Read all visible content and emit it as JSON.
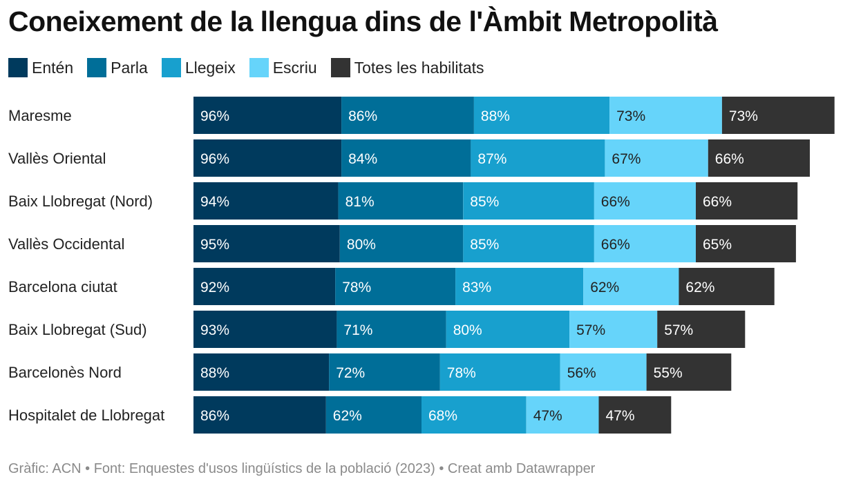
{
  "title": "Coneixement de la llengua dins de l'Àmbit Metropolità",
  "legend": [
    {
      "label": "Entén",
      "color": "#003a5d"
    },
    {
      "label": "Parla",
      "color": "#006e98"
    },
    {
      "label": "Llegeix",
      "color": "#18a0ce"
    },
    {
      "label": "Escriu",
      "color": "#66d4fa"
    },
    {
      "label": "Totes les habilitats",
      "color": "#333333"
    }
  ],
  "footer": {
    "source": "Gràfic: ACN • Font: Enquestes d'usos lingüístics de la població (2023) • Creat amb Datawrapper"
  },
  "chart_data": {
    "type": "bar",
    "orientation": "horizontal",
    "stacked": true,
    "title": "Coneixement de la llengua dins de l'Àmbit Metropolità",
    "categories": [
      "Maresme",
      "Vallès Oriental",
      "Baix Llobregat (Nord)",
      "Vallès Occidental",
      "Barcelona ciutat",
      "Baix Llobregat (Sud)",
      "Barcelonès Nord",
      "Hospitalet de Llobregat"
    ],
    "series": [
      {
        "name": "Entén",
        "color": "#003a5d",
        "text_color": "#ffffff",
        "values": [
          96,
          96,
          94,
          95,
          92,
          93,
          88,
          86
        ]
      },
      {
        "name": "Parla",
        "color": "#006e98",
        "text_color": "#ffffff",
        "values": [
          86,
          84,
          81,
          80,
          78,
          71,
          72,
          62
        ]
      },
      {
        "name": "Llegeix",
        "color": "#18a0ce",
        "text_color": "#ffffff",
        "values": [
          88,
          87,
          85,
          85,
          83,
          80,
          78,
          68
        ]
      },
      {
        "name": "Escriu",
        "color": "#66d4fa",
        "text_color": "#222222",
        "values": [
          73,
          67,
          66,
          66,
          62,
          57,
          56,
          47
        ]
      },
      {
        "name": "Totes les habilitats",
        "color": "#333333",
        "text_color": "#ffffff",
        "values": [
          73,
          66,
          66,
          65,
          62,
          57,
          55,
          47
        ]
      }
    ],
    "value_suffix": "%",
    "data_labels": true,
    "grid": false,
    "legend_position": "top-left"
  }
}
